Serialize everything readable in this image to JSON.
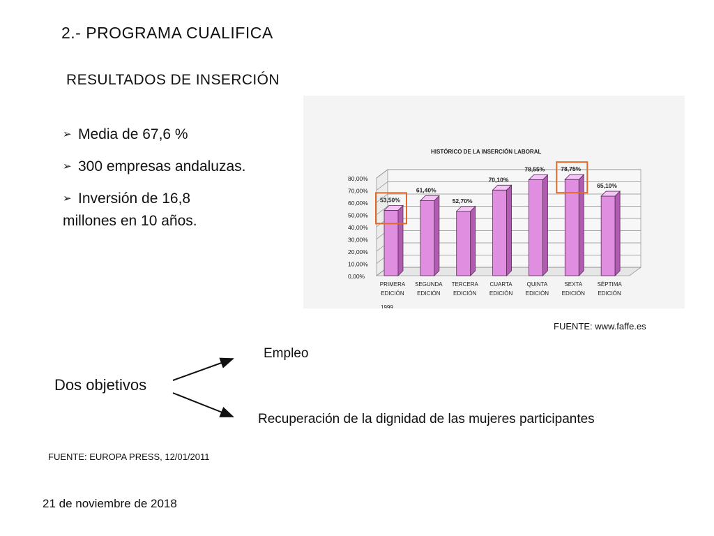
{
  "slide": {
    "title": "2.- PROGRAMA   CUALIFICA",
    "subtitle": "RESULTADOS DE  INSERCIÓN",
    "bullet_marker": "➢",
    "bullets": [
      "Media de 67,6 %",
      "300 empresas andaluzas.",
      "Inversión de 16,8"
    ],
    "bullet3_continuation": "millones en 10 años.",
    "source_chart": "FUENTE: www.faffe.es",
    "objectives_label": "Dos objetivos",
    "objective_1": "Empleo",
    "objective_2": "Recuperación de la dignidad de las mujeres participantes",
    "source_press": "FUENTE: EUROPA PRESS, 12/01/2011",
    "date": "21 de noviembre de 2018",
    "arrow_color": "#111111"
  },
  "chart_data": {
    "type": "bar",
    "title": "HISTÓRICO DE LA INSERCIÓN LABORAL",
    "categories": [
      [
        "PRIMERA",
        "EDICIÓN"
      ],
      [
        "SEGUNDA",
        "EDICIÓN"
      ],
      [
        "TERCERA",
        "EDICIÓN"
      ],
      [
        "CUARTA",
        "EDICIÓN"
      ],
      [
        "QUINTA",
        "EDICIÓN"
      ],
      [
        "SEXTA",
        "EDICIÓN"
      ],
      [
        "SÉPTIMA",
        "EDICIÓN"
      ]
    ],
    "values": [
      53.5,
      61.4,
      52.7,
      70.1,
      78.55,
      78.75,
      65.1
    ],
    "value_labels": [
      "53,50%",
      "61,40%",
      "52,70%",
      "70,10%",
      "78,55%",
      "78,75%",
      "65,10%"
    ],
    "y_ticks": [
      0,
      10,
      20,
      30,
      40,
      50,
      60,
      70,
      80
    ],
    "y_tick_labels": [
      "0,00%",
      "10,00%",
      "20,00%",
      "30,00%",
      "40,00%",
      "50,00%",
      "60,00%",
      "70,00%",
      "80,00%"
    ],
    "ylim": [
      0,
      80
    ],
    "year_note": "1999",
    "highlighted": [
      0,
      5
    ],
    "grid": true,
    "colors": {
      "bar": "#e08fe0",
      "bar_side": "#b05cb0",
      "bar_top": "#f3c6f3",
      "highlight": "#e06a2a"
    }
  }
}
